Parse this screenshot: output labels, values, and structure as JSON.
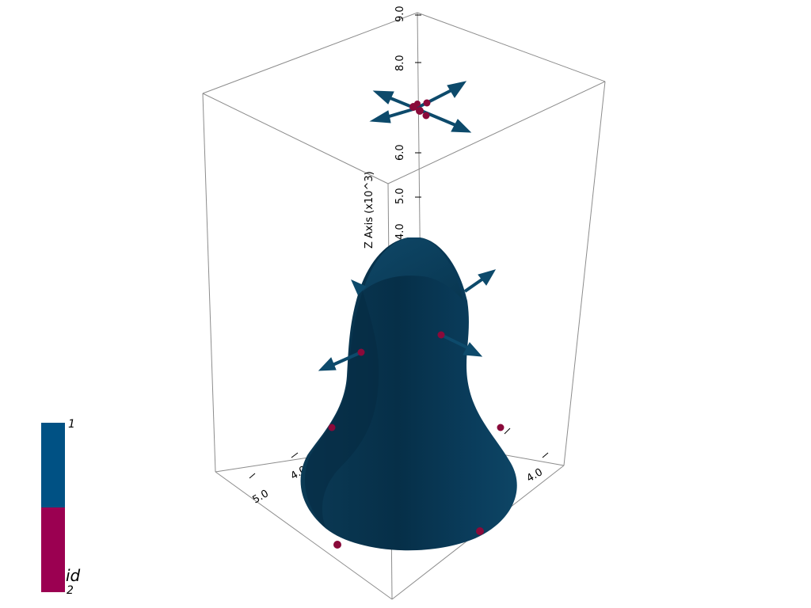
{
  "z_axis": {
    "title": "Z Axis (x10^3)",
    "ticks": [
      "4.0",
      "5.0",
      "6.0",
      "8.0",
      "9.0"
    ]
  },
  "x_axis": {
    "ticks": [
      "5.0",
      "4.0"
    ]
  },
  "y_axis": {
    "ticks": [
      "4.0"
    ]
  },
  "scalar_bar": {
    "title": "id",
    "max_label": "1",
    "min_label": "2",
    "colors": [
      "#005184",
      "#9b0051"
    ]
  },
  "colors": {
    "surface": "#0b3f5e",
    "arrow": "#0d4a6b",
    "point": "#8a0a3a",
    "box": "#8c8c8c"
  }
}
